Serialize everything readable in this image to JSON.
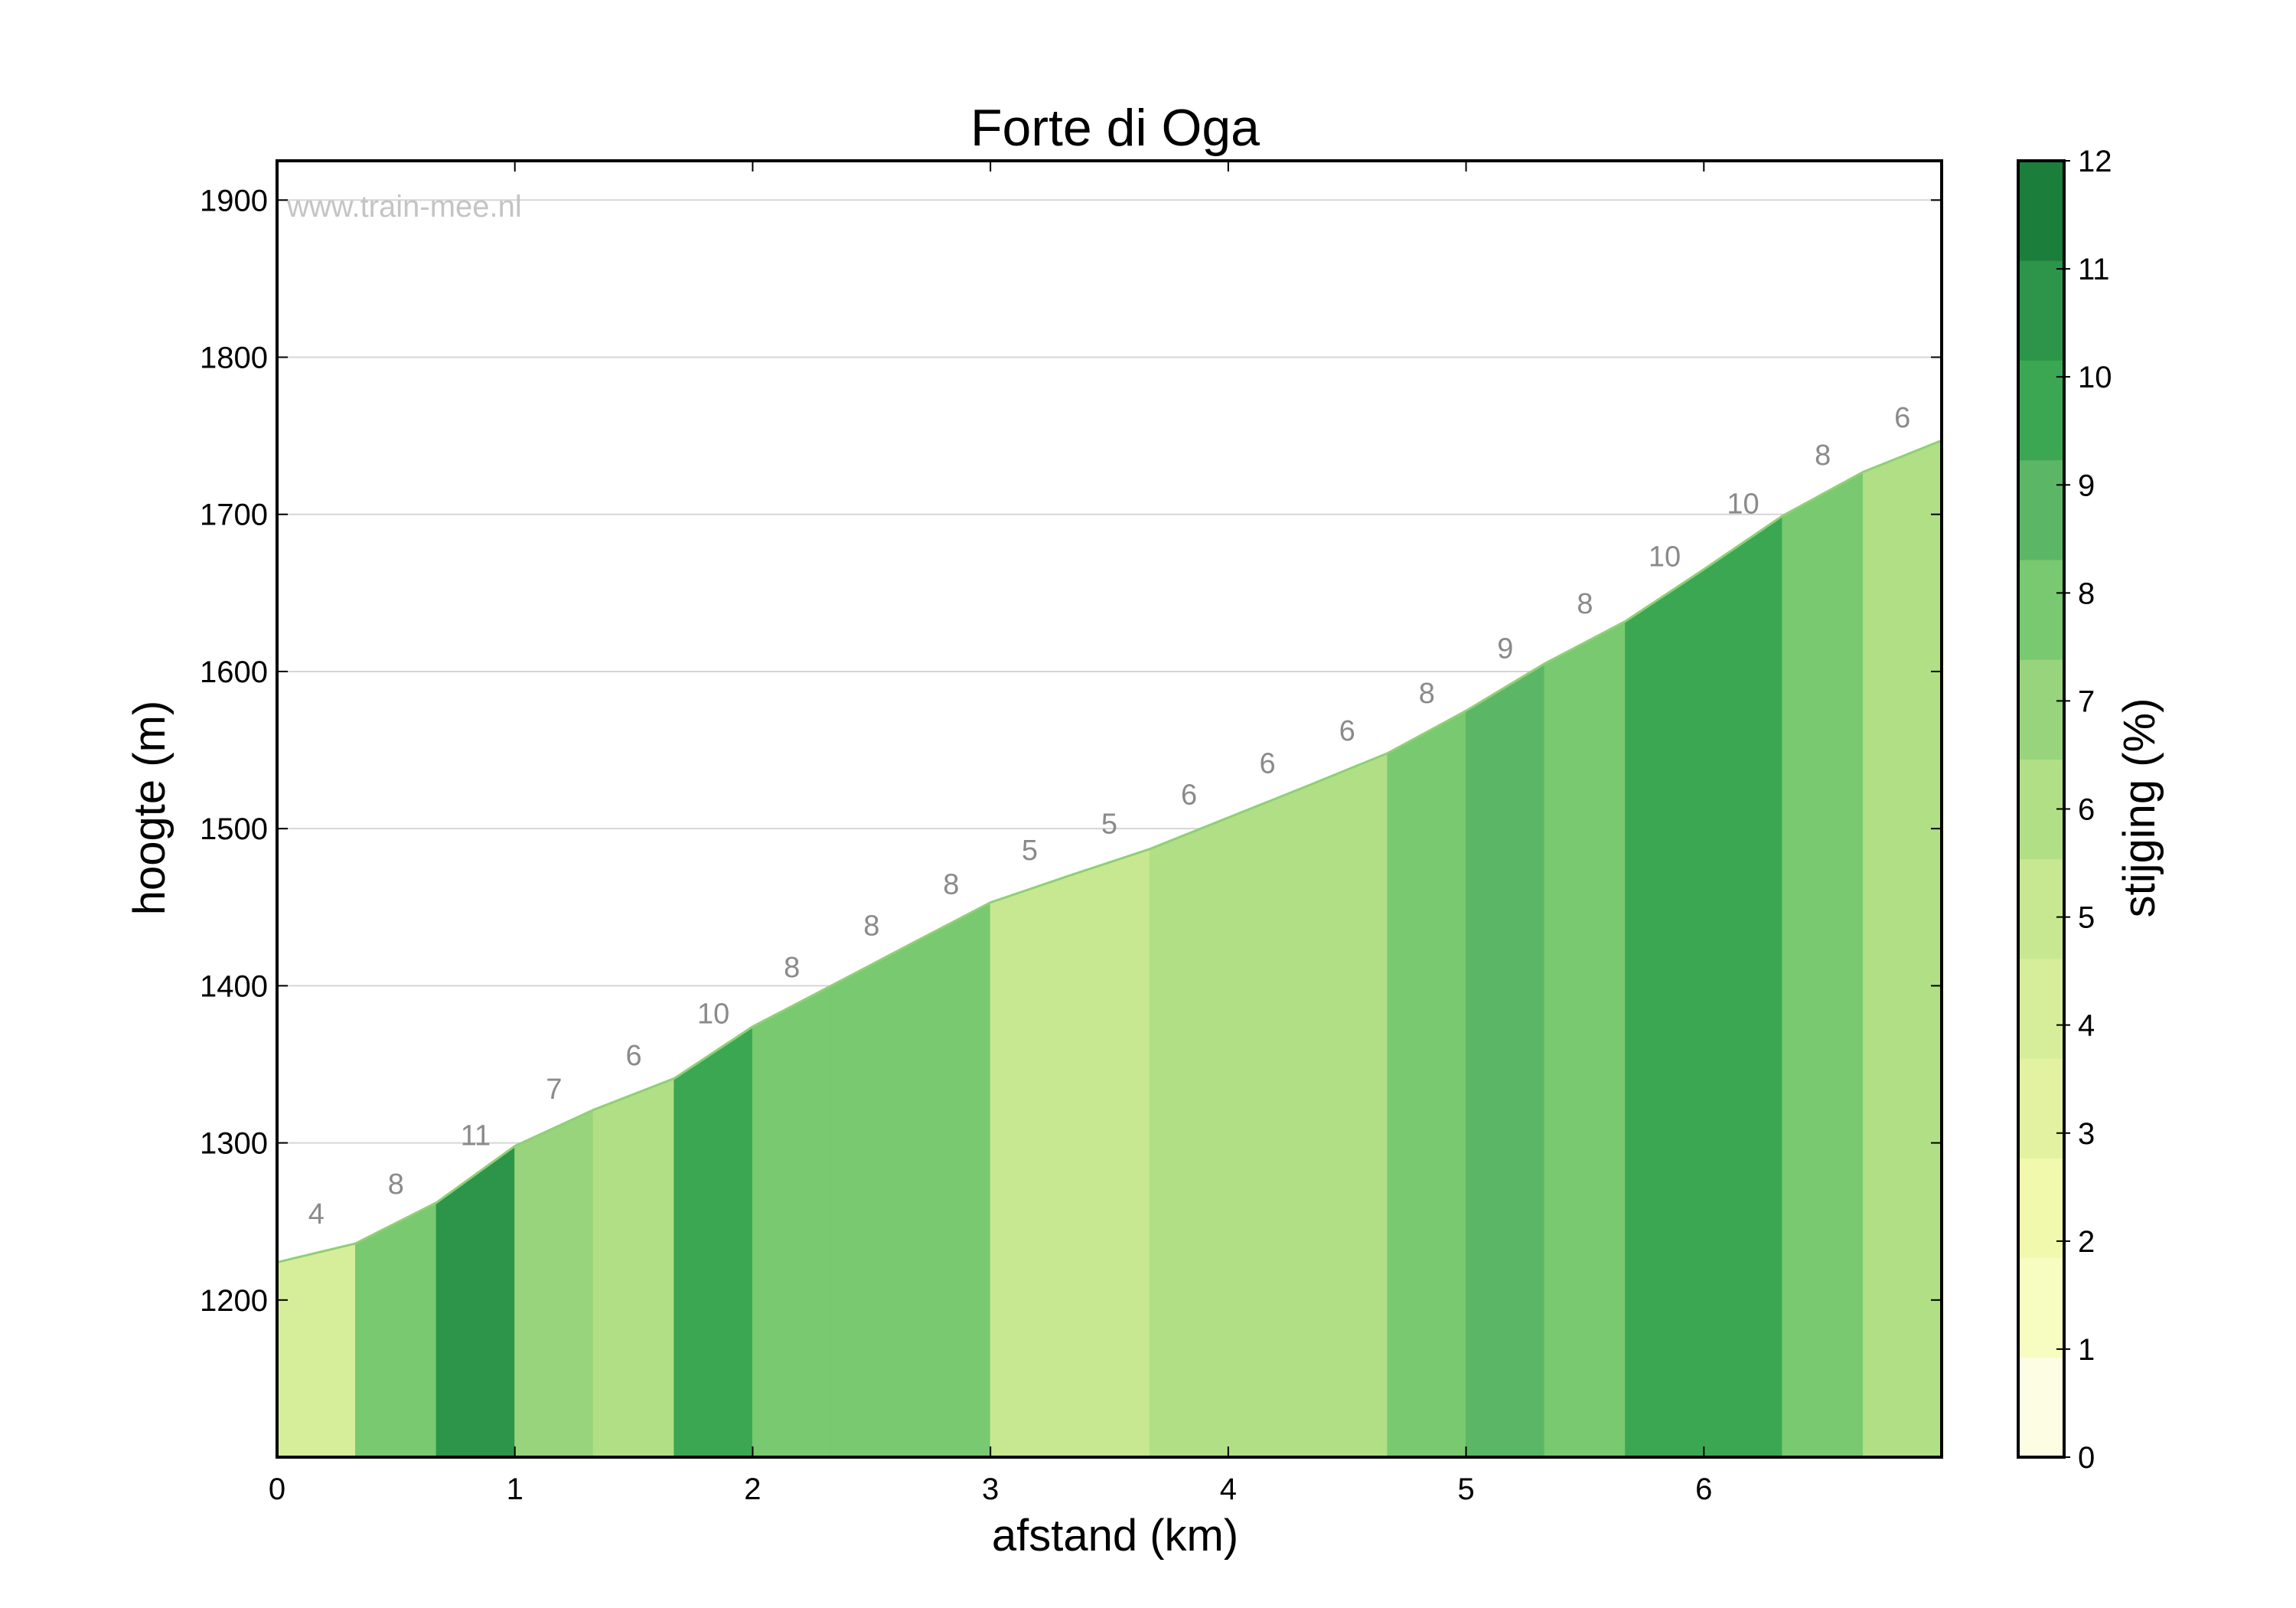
{
  "chart_data": {
    "type": "area",
    "title": "Forte di Oga",
    "xlabel": "afstand (km)",
    "ylabel": "hoogte (m)",
    "watermark": "www.train-mee.nl",
    "xlim": [
      0,
      7.0
    ],
    "ylim": [
      1100,
      1925
    ],
    "xticks": [
      0,
      1,
      2,
      3,
      4,
      5,
      6
    ],
    "yticks": [
      1200,
      1300,
      1400,
      1500,
      1600,
      1700,
      1800,
      1900
    ],
    "grid": "horizontal",
    "profile": [
      {
        "x0": 0.0,
        "x1": 0.33,
        "y0": 1224,
        "y1": 1236,
        "grade": 4
      },
      {
        "x0": 0.33,
        "x1": 0.67,
        "y0": 1236,
        "y1": 1262,
        "grade": 8
      },
      {
        "x0": 0.67,
        "x1": 1.0,
        "y0": 1262,
        "y1": 1298,
        "grade": 11
      },
      {
        "x0": 1.0,
        "x1": 1.33,
        "y0": 1298,
        "y1": 1321,
        "grade": 7
      },
      {
        "x0": 1.33,
        "x1": 1.67,
        "y0": 1321,
        "y1": 1341,
        "grade": 6
      },
      {
        "x0": 1.67,
        "x1": 2.0,
        "y0": 1341,
        "y1": 1374,
        "grade": 10
      },
      {
        "x0": 2.0,
        "x1": 2.33,
        "y0": 1374,
        "y1": 1400,
        "grade": 8
      },
      {
        "x0": 2.33,
        "x1": 2.67,
        "y0": 1400,
        "y1": 1427,
        "grade": 8
      },
      {
        "x0": 2.67,
        "x1": 3.0,
        "y0": 1427,
        "y1": 1453,
        "grade": 8
      },
      {
        "x0": 3.0,
        "x1": 3.33,
        "y0": 1453,
        "y1": 1470,
        "grade": 5
      },
      {
        "x0": 3.33,
        "x1": 3.67,
        "y0": 1470,
        "y1": 1487,
        "grade": 5
      },
      {
        "x0": 3.67,
        "x1": 4.0,
        "y0": 1487,
        "y1": 1507,
        "grade": 6
      },
      {
        "x0": 4.0,
        "x1": 4.33,
        "y0": 1507,
        "y1": 1527,
        "grade": 6
      },
      {
        "x0": 4.33,
        "x1": 4.67,
        "y0": 1527,
        "y1": 1548,
        "grade": 6
      },
      {
        "x0": 4.67,
        "x1": 5.0,
        "y0": 1548,
        "y1": 1575,
        "grade": 8
      },
      {
        "x0": 5.0,
        "x1": 5.33,
        "y0": 1575,
        "y1": 1605,
        "grade": 9
      },
      {
        "x0": 5.33,
        "x1": 5.67,
        "y0": 1605,
        "y1": 1632,
        "grade": 8
      },
      {
        "x0": 5.67,
        "x1": 6.0,
        "y0": 1632,
        "y1": 1665,
        "grade": 10
      },
      {
        "x0": 6.0,
        "x1": 6.33,
        "y0": 1665,
        "y1": 1699,
        "grade": 10
      },
      {
        "x0": 6.33,
        "x1": 6.67,
        "y0": 1699,
        "y1": 1727,
        "grade": 8
      },
      {
        "x0": 6.67,
        "x1": 7.0,
        "y0": 1727,
        "y1": 1747,
        "grade": 6
      }
    ],
    "colorbar": {
      "label": "stijging (%)",
      "range": [
        0,
        12
      ],
      "ticks": [
        0,
        1,
        2,
        3,
        4,
        5,
        6,
        7,
        8,
        9,
        10,
        11,
        12
      ],
      "colors": [
        "#fdfde4",
        "#f7fcc0",
        "#f1f9ad",
        "#e3f2a0",
        "#d6ee9a",
        "#c7e891",
        "#b1df85",
        "#98d47c",
        "#78c96f",
        "#5bb765",
        "#3ca753",
        "#2c9549",
        "#1c7e3b"
      ]
    }
  }
}
